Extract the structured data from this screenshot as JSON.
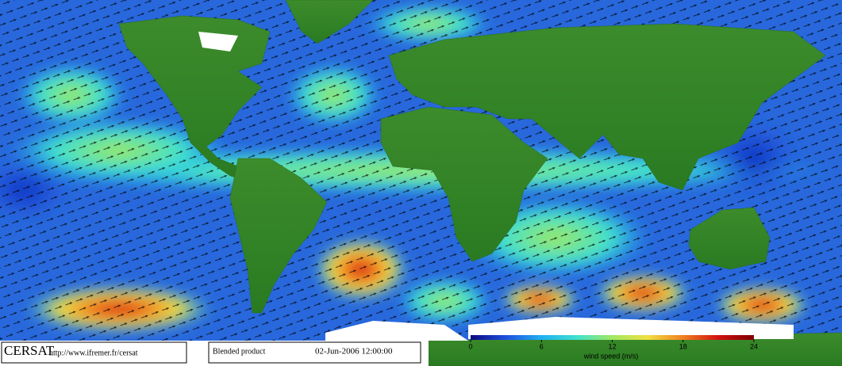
{
  "footer": {
    "brand": "CERSAT",
    "url": "http://www.ifremer.fr/cersat",
    "product": "Blended product",
    "timestamp": "02-Jun-2006 12:00:00"
  },
  "colorbar": {
    "label": "wind speed (m/s)",
    "range": [
      0,
      24
    ],
    "ticks": [
      0,
      6,
      12,
      18,
      24
    ],
    "colors": [
      "#0a0a80",
      "#1f4fe0",
      "#20b0f0",
      "#40e0d0",
      "#a0e860",
      "#f0e040",
      "#f08020",
      "#d01010",
      "#800000"
    ]
  }
}
